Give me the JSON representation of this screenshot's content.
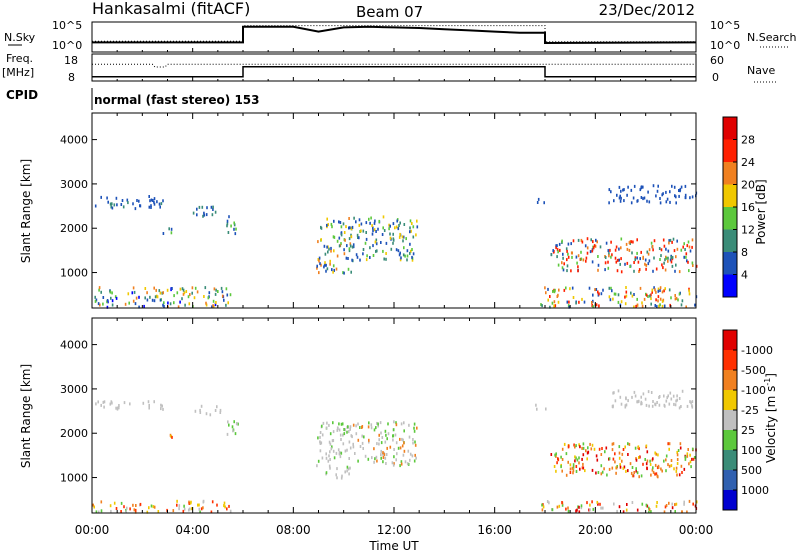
{
  "header": {
    "station": "Hankasalmi (fitACF)",
    "beam": "Beam 07",
    "date": "23/Dec/2012"
  },
  "strip_labels": {
    "nsky": "N.Sky",
    "nsearch": "N.Search",
    "nsky_ticks": [
      "10^5",
      "10^0"
    ],
    "nsearch_ticks": [
      "10^5",
      "10^0"
    ],
    "freq": "Freq.",
    "freq_unit": "[MHz]",
    "freq_ticks": [
      "18",
      "8"
    ],
    "nave": "Nave",
    "nave_ticks": [
      "60",
      "0"
    ],
    "cpid": "CPID",
    "cpid_text": "normal (fast stereo) 153"
  },
  "chart_data": [
    {
      "type": "line",
      "title": "N.Sky / N.Search",
      "xlim": [
        0,
        24
      ],
      "ylim": [
        0,
        5
      ],
      "series": [
        {
          "name": "N.Sky",
          "style": "solid",
          "x": [
            0,
            6,
            6,
            8,
            9,
            10,
            11,
            12,
            13,
            14,
            15,
            16,
            17,
            18,
            18,
            24
          ],
          "y": [
            1.6,
            1.6,
            4.2,
            4.2,
            3.4,
            4.1,
            4.2,
            4.1,
            4.0,
            3.8,
            3.6,
            3.4,
            3.2,
            3.2,
            1.5,
            1.6
          ]
        },
        {
          "name": "N.Search",
          "style": "dotted",
          "x": [
            0,
            6,
            6,
            18,
            18,
            24
          ],
          "y": [
            1.8,
            1.8,
            4.4,
            4.4,
            1.7,
            1.7
          ]
        }
      ]
    },
    {
      "type": "line",
      "title": "Freq. / Nave",
      "xlim": [
        0,
        24
      ],
      "ylim": [
        8,
        18
      ],
      "series": [
        {
          "name": "Freq.",
          "style": "dotted",
          "x": [
            0,
            2.4,
            2.5,
            2.9,
            3.0,
            24
          ],
          "y": [
            14.2,
            14.2,
            13.2,
            13.2,
            14.2,
            14.2
          ]
        },
        {
          "name": "Nave",
          "style": "solid",
          "x": [
            0,
            6,
            6,
            18,
            18,
            24
          ],
          "y": [
            9.6,
            9.6,
            13.3,
            13.3,
            9.6,
            9.6
          ]
        }
      ]
    },
    {
      "type": "scatter",
      "title": "Power",
      "xlabel": "",
      "ylabel": "Slant Range [km]",
      "xlim": [
        0,
        24
      ],
      "ylim": [
        200,
        4600
      ],
      "yticks": [
        "1000",
        "2000",
        "3000",
        "4000"
      ],
      "colorbar": {
        "label": "Power [dB]",
        "ticks": [
          "4",
          "8",
          "12",
          "16",
          "20",
          "24",
          "28"
        ],
        "colors": [
          "#0000ff",
          "#1d52b8",
          "#3a8c78",
          "#5cc83c",
          "#f0c800",
          "#f08020",
          "#ff2000",
          "#e00000"
        ]
      },
      "clusters": [
        {
          "x": [
            0.1,
            2.8
          ],
          "r": [
            2450,
            2750
          ],
          "c": [
            1,
            1,
            1,
            2
          ]
        },
        {
          "x": [
            2.8,
            3.2
          ],
          "r": [
            1850,
            2050
          ],
          "c": [
            2,
            3,
            1
          ]
        },
        {
          "x": [
            4.0,
            5.1
          ],
          "r": [
            2300,
            2600
          ],
          "c": [
            1,
            2,
            1
          ]
        },
        {
          "x": [
            5.2,
            5.8
          ],
          "r": [
            1900,
            2300
          ],
          "c": [
            1,
            3,
            2
          ]
        },
        {
          "x": [
            8.9,
            10.3
          ],
          "r": [
            1000,
            2300
          ],
          "c": [
            1,
            1,
            2,
            3,
            4,
            5
          ]
        },
        {
          "x": [
            10.3,
            12.9
          ],
          "r": [
            1300,
            2300
          ],
          "c": [
            1,
            1,
            2,
            3,
            4
          ]
        },
        {
          "x": [
            17.6,
            18.0
          ],
          "r": [
            2550,
            2700
          ],
          "c": [
            1,
            1
          ]
        },
        {
          "x": [
            18.2,
            24.0
          ],
          "r": [
            1050,
            1800
          ],
          "c": [
            1,
            2,
            3,
            5,
            6,
            6
          ]
        },
        {
          "x": [
            20.5,
            24.0
          ],
          "r": [
            2600,
            3000
          ],
          "c": [
            1
          ]
        },
        {
          "x": [
            0.0,
            5.5
          ],
          "r": [
            250,
            700
          ],
          "c": [
            1,
            2,
            3,
            4,
            5,
            0
          ]
        },
        {
          "x": [
            17.8,
            24.0
          ],
          "r": [
            250,
            700
          ],
          "c": [
            1,
            2,
            3,
            4,
            5,
            6
          ]
        }
      ]
    },
    {
      "type": "scatter",
      "title": "Velocity",
      "xlabel": "Time UT",
      "ylabel": "Slant Range [km]",
      "xlim": [
        0,
        24
      ],
      "ylim": [
        200,
        4600
      ],
      "yticks": [
        "1000",
        "2000",
        "3000",
        "4000"
      ],
      "xticks": [
        "00:00",
        "04:00",
        "08:00",
        "12:00",
        "16:00",
        "20:00",
        "00:00"
      ],
      "colorbar": {
        "label": "Velocity [m s^-1]",
        "ticks": [
          "1000",
          "500",
          "100",
          "25",
          "-25",
          "-100",
          "-500",
          "-1000"
        ],
        "colors": [
          "#0000d0",
          "#3060b0",
          "#3a8c78",
          "#5cc83c",
          "#c0c0c0",
          "#f0c800",
          "#f08020",
          "#ff3000",
          "#e00000"
        ]
      },
      "clusters": [
        {
          "x": [
            0.1,
            2.8
          ],
          "r": [
            2550,
            2750
          ],
          "c": [
            4,
            4,
            4
          ]
        },
        {
          "x": [
            2.9,
            3.2
          ],
          "r": [
            1850,
            2050
          ],
          "c": [
            6,
            7,
            5
          ]
        },
        {
          "x": [
            4.0,
            5.1
          ],
          "r": [
            2450,
            2650
          ],
          "c": [
            4
          ]
        },
        {
          "x": [
            5.2,
            5.8
          ],
          "r": [
            1900,
            2300
          ],
          "c": [
            4,
            3
          ]
        },
        {
          "x": [
            8.9,
            10.3
          ],
          "r": [
            1000,
            2300
          ],
          "c": [
            4,
            4,
            4,
            3
          ]
        },
        {
          "x": [
            10.3,
            12.9
          ],
          "r": [
            1300,
            2300
          ],
          "c": [
            4,
            4,
            3,
            6
          ]
        },
        {
          "x": [
            17.6,
            18.0
          ],
          "r": [
            2550,
            2700
          ],
          "c": [
            4
          ]
        },
        {
          "x": [
            18.2,
            24.0
          ],
          "r": [
            1050,
            1800
          ],
          "c": [
            6,
            6,
            7,
            5,
            8,
            3
          ]
        },
        {
          "x": [
            20.5,
            24.0
          ],
          "r": [
            2600,
            3000
          ],
          "c": [
            4
          ]
        },
        {
          "x": [
            0.0,
            5.5
          ],
          "r": [
            250,
            500
          ],
          "c": [
            4,
            6,
            3,
            7,
            5
          ]
        },
        {
          "x": [
            17.8,
            24.0
          ],
          "r": [
            250,
            500
          ],
          "c": [
            4,
            6,
            3,
            7,
            5,
            8
          ]
        }
      ]
    }
  ]
}
